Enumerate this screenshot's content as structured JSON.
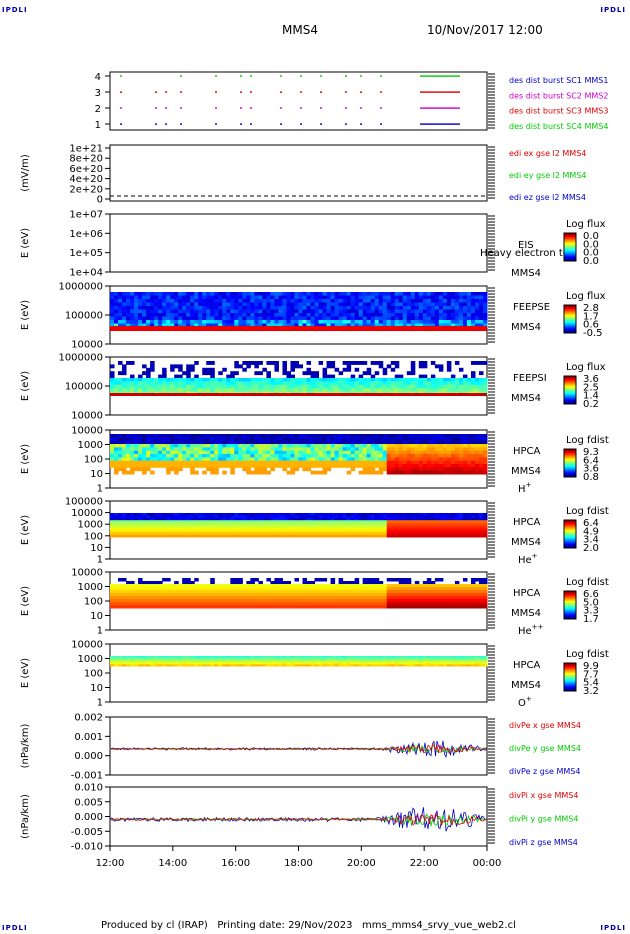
{
  "corners": {
    "top_left": "IPDLI",
    "top_right": "IPDLI",
    "bottom_left": "IPDLI",
    "bottom_right": "IPDLI"
  },
  "header": {
    "spacecraft": "MMS4",
    "datetime": "10/Nov/2017 12:00"
  },
  "footer": {
    "text": "Produced by cl (IRAP)   Printing date: 29/Nov/2023   mms_mms4_srvy_vue_web2.cl"
  },
  "colors": {
    "mms1": "#0000cc",
    "mms2": "#cc00cc",
    "mms3": "#dd0000",
    "mms4": "#00cc00",
    "x": "#dd0000",
    "y": "#00cc00",
    "z": "#0000cc"
  },
  "chart_data": [
    {
      "type": "scatter",
      "id": "burst",
      "yticks": [
        "4",
        "3",
        "2",
        "1"
      ],
      "legend": [
        {
          "text": "des dist burst SC1 MMS1",
          "color": "mms1"
        },
        {
          "text": "des dist burst SC2 MMS2",
          "color": "mms2"
        },
        {
          "text": "des dist burst SC3 MMS3",
          "color": "mms3"
        },
        {
          "text": "des dist burst SC4 MMS4",
          "color": "mms4"
        }
      ]
    },
    {
      "type": "line",
      "id": "edi",
      "ylabel": "(mV/m)",
      "yticks": [
        "1e+21",
        "8e+20",
        "6e+20",
        "4e+20",
        "2e+20",
        "0"
      ],
      "legend": [
        {
          "text": "edi ex gse l2 MMS4",
          "color": "x"
        },
        {
          "text": "edi ey gse l2 MMS4",
          "color": "y"
        },
        {
          "text": "edi ez gse l2 MMS4",
          "color": "z"
        }
      ]
    },
    {
      "type": "heatmap",
      "id": "eis",
      "ylabel": "E (eV)",
      "yticks": [
        "1e+07",
        "1e+06",
        "1e+05",
        "1e+04"
      ],
      "labels": [
        "EIS",
        "MMS4"
      ],
      "overlay": "Heavy electron to",
      "cbar_title": "Log flux",
      "cbar_ticks": [
        "0.0",
        "0.0",
        "0.0",
        "0.0"
      ]
    },
    {
      "type": "heatmap",
      "id": "feepse",
      "ylabel": "E (eV)",
      "yticks": [
        "1000000",
        "100000",
        "10000"
      ],
      "labels": [
        "FEEPSE",
        "MMS4"
      ],
      "cbar_title": "Log flux",
      "cbar_ticks": [
        "2.8",
        "1.7",
        "0.6",
        "-0.5"
      ]
    },
    {
      "type": "heatmap",
      "id": "feepsi",
      "ylabel": "E (eV)",
      "yticks": [
        "1000000",
        "100000",
        "10000"
      ],
      "labels": [
        "FEEPSI",
        "MMS4"
      ],
      "cbar_title": "Log flux",
      "cbar_ticks": [
        "3.6",
        "2.5",
        "1.4",
        "0.2"
      ]
    },
    {
      "type": "heatmap",
      "id": "hpca_h",
      "ylabel": "E (eV)",
      "yticks": [
        "10000",
        "1000",
        "100",
        "10",
        "1"
      ],
      "labels": [
        "HPCA",
        "MMS4"
      ],
      "species": "H",
      "species_sup": "+",
      "cbar_title": "Log fdist",
      "cbar_ticks": [
        "9.3",
        "6.4",
        "3.6",
        "0.8"
      ]
    },
    {
      "type": "heatmap",
      "id": "hpca_he",
      "ylabel": "E (eV)",
      "yticks": [
        "100000",
        "10000",
        "1000",
        "100",
        "10",
        "1"
      ],
      "labels": [
        "HPCA",
        "MMS4"
      ],
      "species": "He",
      "species_sup": "+",
      "cbar_title": "Log fdist",
      "cbar_ticks": [
        "6.4",
        "4.9",
        "3.4",
        "2.0"
      ]
    },
    {
      "type": "heatmap",
      "id": "hpca_hepp",
      "ylabel": "E (eV)",
      "yticks": [
        "10000",
        "1000",
        "100",
        "10",
        "1"
      ],
      "labels": [
        "HPCA",
        "MMS4"
      ],
      "species": "He",
      "species_sup": "++",
      "cbar_title": "Log fdist",
      "cbar_ticks": [
        "6.6",
        "5.0",
        "3.3",
        "1.7"
      ]
    },
    {
      "type": "heatmap",
      "id": "hpca_o",
      "ylabel": "E (eV)",
      "yticks": [
        "10000",
        "1000",
        "100",
        "10",
        "1"
      ],
      "labels": [
        "HPCA",
        "MMS4"
      ],
      "species": "O",
      "species_sup": "+",
      "cbar_title": "Log fdist",
      "cbar_ticks": [
        "9.9",
        "7.7",
        "5.4",
        "3.2"
      ]
    },
    {
      "type": "line",
      "id": "divpe",
      "ylabel": "(nPa/km)",
      "yticks": [
        "0.002",
        "0.001",
        "0.000",
        "-0.001"
      ],
      "legend": [
        {
          "text": "divPe x gse MMS4",
          "color": "x"
        },
        {
          "text": "divPe y gse MMS4",
          "color": "y"
        },
        {
          "text": "divPe z gse MMS4",
          "color": "z"
        }
      ]
    },
    {
      "type": "line",
      "id": "divpi",
      "ylabel": "(nPa/km)",
      "yticks": [
        "0.010",
        "0.005",
        "0.000",
        "-0.005",
        "-0.010"
      ],
      "legend": [
        {
          "text": "divPi x gse MMS4",
          "color": "x"
        },
        {
          "text": "divPi y gse MMS4",
          "color": "y"
        },
        {
          "text": "divPi z gse MMS4",
          "color": "z"
        }
      ]
    }
  ],
  "xticks": [
    "12:00",
    "14:00",
    "16:00",
    "18:00",
    "20:00",
    "22:00",
    "00:00"
  ]
}
